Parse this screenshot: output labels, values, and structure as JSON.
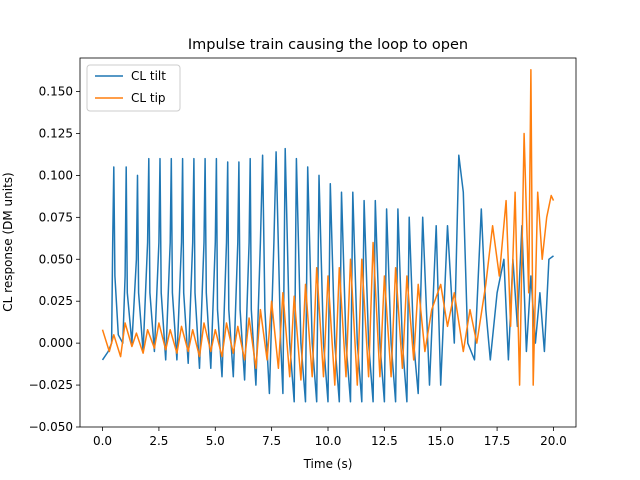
{
  "chart_data": {
    "type": "line",
    "title": "Impulse train causing the loop to open",
    "xlabel": "Time (s)",
    "ylabel": "CL response (DM units)",
    "xlim": [
      -1.0,
      21.0
    ],
    "ylim": [
      -0.05,
      0.17
    ],
    "xticks": [
      0.0,
      2.5,
      5.0,
      7.5,
      10.0,
      12.5,
      15.0,
      17.5,
      20.0
    ],
    "xtick_labels": [
      "0.0",
      "2.5",
      "5.0",
      "7.5",
      "10.0",
      "12.5",
      "15.0",
      "17.5",
      "20.0"
    ],
    "yticks": [
      -0.05,
      -0.025,
      0.0,
      0.025,
      0.05,
      0.075,
      0.1,
      0.125,
      0.15
    ],
    "ytick_labels": [
      "−0.050",
      "−0.025",
      "0.000",
      "0.025",
      "0.050",
      "0.075",
      "0.100",
      "0.125",
      "0.150"
    ],
    "grid": false,
    "legend_position": "top-left",
    "series": [
      {
        "name": "CL tilt",
        "color": "#1f77b4",
        "x": [
          0.0,
          0.25,
          0.4,
          0.45,
          0.5,
          0.55,
          0.7,
          0.9,
          1.0,
          1.05,
          1.1,
          1.3,
          1.5,
          1.55,
          1.6,
          1.8,
          2.0,
          2.05,
          2.1,
          2.3,
          2.5,
          2.55,
          2.6,
          2.8,
          3.0,
          3.05,
          3.1,
          3.3,
          3.5,
          3.55,
          3.6,
          3.8,
          4.0,
          4.05,
          4.1,
          4.3,
          4.5,
          4.55,
          4.6,
          4.8,
          5.0,
          5.05,
          5.1,
          5.3,
          5.5,
          5.55,
          5.6,
          5.8,
          6.0,
          6.05,
          6.1,
          6.3,
          6.5,
          6.55,
          6.6,
          6.8,
          7.0,
          7.1,
          7.2,
          7.4,
          7.6,
          7.7,
          7.9,
          8.0,
          8.1,
          8.3,
          8.5,
          8.6,
          8.8,
          9.0,
          9.1,
          9.3,
          9.5,
          9.6,
          9.8,
          10.0,
          10.1,
          10.3,
          10.5,
          10.6,
          10.8,
          11.0,
          11.1,
          11.3,
          11.5,
          11.6,
          11.8,
          12.0,
          12.1,
          12.3,
          12.5,
          12.6,
          12.8,
          13.0,
          13.1,
          13.3,
          13.5,
          13.6,
          13.8,
          14.0,
          14.2,
          14.5,
          14.8,
          15.0,
          15.3,
          15.6,
          15.8,
          16.0,
          16.2,
          16.5,
          16.8,
          17.0,
          17.2,
          17.5,
          17.8,
          18.0,
          18.2,
          18.4,
          18.6,
          18.8,
          19.0,
          19.2,
          19.4,
          19.6,
          19.8,
          20.0
        ],
        "values": [
          -0.01,
          -0.005,
          0.0,
          0.06,
          0.105,
          0.04,
          0.005,
          0.0,
          0.04,
          0.105,
          0.03,
          0.0,
          0.05,
          0.1,
          0.03,
          -0.005,
          0.06,
          0.11,
          0.03,
          -0.005,
          0.06,
          0.11,
          0.03,
          -0.01,
          0.06,
          0.11,
          0.03,
          -0.01,
          0.06,
          0.11,
          0.03,
          -0.012,
          0.06,
          0.11,
          0.03,
          -0.015,
          0.06,
          0.11,
          0.03,
          -0.015,
          0.06,
          0.11,
          0.02,
          -0.02,
          0.06,
          0.108,
          0.02,
          -0.02,
          0.06,
          0.108,
          0.02,
          -0.022,
          0.06,
          0.11,
          0.02,
          -0.025,
          0.06,
          0.112,
          0.02,
          -0.03,
          0.06,
          0.114,
          0.0,
          -0.03,
          0.116,
          0.0,
          -0.035,
          0.11,
          0.0,
          -0.035,
          0.105,
          0.0,
          -0.035,
          0.1,
          0.0,
          -0.035,
          0.095,
          0.0,
          -0.035,
          0.09,
          0.0,
          -0.035,
          0.09,
          0.0,
          -0.035,
          0.085,
          0.0,
          -0.035,
          0.085,
          0.0,
          -0.035,
          0.08,
          0.0,
          -0.035,
          0.08,
          0.0,
          -0.035,
          0.075,
          0.0,
          -0.03,
          0.075,
          -0.025,
          0.07,
          -0.025,
          0.07,
          0.0,
          0.112,
          0.09,
          0.0,
          -0.01,
          0.08,
          0.02,
          -0.01,
          0.03,
          0.05,
          -0.01,
          0.05,
          0.01,
          0.07,
          -0.005,
          0.04,
          0.0,
          0.03,
          -0.005,
          0.05,
          0.052
        ]
      },
      {
        "name": "CL tip",
        "color": "#ff7f0e",
        "x": [
          0.0,
          0.3,
          0.5,
          0.8,
          1.0,
          1.3,
          1.5,
          1.8,
          2.0,
          2.3,
          2.5,
          2.8,
          3.0,
          3.3,
          3.5,
          3.8,
          4.0,
          4.3,
          4.5,
          4.8,
          5.0,
          5.3,
          5.5,
          5.8,
          6.0,
          6.3,
          6.5,
          6.8,
          7.0,
          7.3,
          7.5,
          7.8,
          8.0,
          8.3,
          8.5,
          8.8,
          9.0,
          9.3,
          9.5,
          9.8,
          10.0,
          10.3,
          10.5,
          10.8,
          11.0,
          11.3,
          11.5,
          11.8,
          12.0,
          12.3,
          12.5,
          12.8,
          13.0,
          13.3,
          13.5,
          13.8,
          14.0,
          14.3,
          14.6,
          15.0,
          15.3,
          15.6,
          16.0,
          16.3,
          16.6,
          17.0,
          17.3,
          17.6,
          17.9,
          18.1,
          18.3,
          18.5,
          18.7,
          18.9,
          19.0,
          19.1,
          19.3,
          19.5,
          19.7,
          19.9,
          20.0
        ],
        "values": [
          0.008,
          -0.005,
          0.005,
          -0.008,
          0.012,
          -0.002,
          0.006,
          -0.006,
          0.008,
          -0.003,
          0.012,
          -0.004,
          0.008,
          -0.006,
          0.01,
          -0.005,
          0.008,
          -0.008,
          0.012,
          -0.005,
          0.008,
          -0.008,
          0.012,
          -0.006,
          0.01,
          -0.01,
          0.015,
          -0.015,
          0.02,
          -0.01,
          0.025,
          -0.015,
          0.03,
          -0.02,
          0.028,
          -0.022,
          0.035,
          -0.02,
          0.045,
          -0.02,
          0.04,
          -0.025,
          0.045,
          -0.02,
          0.05,
          -0.025,
          0.05,
          -0.02,
          0.06,
          -0.02,
          0.04,
          -0.02,
          0.045,
          -0.015,
          0.04,
          -0.01,
          0.035,
          -0.005,
          0.02,
          0.035,
          0.01,
          0.03,
          -0.005,
          0.02,
          0.0,
          0.035,
          0.07,
          0.04,
          0.085,
          0.01,
          0.09,
          -0.025,
          0.125,
          0.03,
          0.163,
          -0.025,
          0.09,
          0.05,
          0.075,
          0.088,
          0.085
        ]
      }
    ]
  }
}
